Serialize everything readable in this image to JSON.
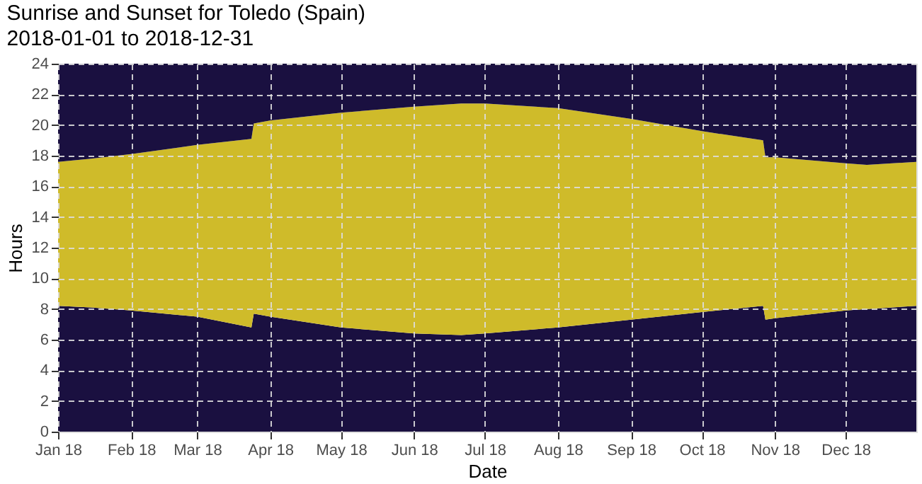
{
  "chart_data": {
    "type": "area",
    "stacked": true,
    "title": "Sunrise and Sunset for Toledo (Spain)",
    "subtitle": "2018-01-01 to 2018-12-31",
    "xlabel": "Date",
    "ylabel": "Hours",
    "x": [
      "2018-01-01",
      "2018-01-15",
      "2018-02-01",
      "2018-03-01",
      "2018-03-24",
      "2018-03-25",
      "2018-04-01",
      "2018-05-01",
      "2018-06-01",
      "2018-06-21",
      "2018-07-01",
      "2018-08-01",
      "2018-09-01",
      "2018-10-01",
      "2018-10-27",
      "2018-10-28",
      "2018-11-01",
      "2018-12-01",
      "2018-12-10",
      "2018-12-31"
    ],
    "series": [
      {
        "color": "#1a1040",
        "values": [
          8.2,
          8.1,
          7.9,
          7.5,
          6.8,
          7.7,
          7.5,
          6.8,
          6.4,
          6.3,
          6.4,
          6.8,
          7.3,
          7.8,
          8.2,
          7.3,
          7.4,
          7.9,
          8.0,
          8.2
        ]
      },
      {
        "color": "#cfbb2a",
        "values": [
          9.4,
          9.7,
          10.2,
          11.2,
          12.3,
          12.4,
          12.8,
          14.0,
          14.8,
          15.1,
          15.0,
          14.3,
          13.1,
          11.8,
          10.8,
          10.6,
          10.5,
          9.6,
          9.4,
          9.4
        ]
      },
      {
        "color": "#1a1040",
        "values": [
          6.4,
          6.2,
          5.9,
          5.3,
          4.9,
          3.9,
          3.7,
          3.2,
          2.8,
          2.6,
          2.6,
          2.9,
          3.6,
          4.4,
          5.0,
          6.1,
          6.1,
          6.5,
          6.6,
          6.4
        ]
      }
    ],
    "xlim": [
      "2018-01-01",
      "2018-12-31"
    ],
    "xticks": [
      {
        "value": "2018-01-01",
        "label": "Jan 18"
      },
      {
        "value": "2018-02-01",
        "label": "Feb 18"
      },
      {
        "value": "2018-03-01",
        "label": "Mar 18"
      },
      {
        "value": "2018-04-01",
        "label": "Apr 18"
      },
      {
        "value": "2018-05-01",
        "label": "May 18"
      },
      {
        "value": "2018-06-01",
        "label": "Jun 18"
      },
      {
        "value": "2018-07-01",
        "label": "Jul 18"
      },
      {
        "value": "2018-08-01",
        "label": "Aug 18"
      },
      {
        "value": "2018-09-01",
        "label": "Sep 18"
      },
      {
        "value": "2018-10-01",
        "label": "Oct 18"
      },
      {
        "value": "2018-11-01",
        "label": "Nov 18"
      },
      {
        "value": "2018-12-01",
        "label": "Dec 18"
      }
    ],
    "ylim": [
      0,
      24
    ],
    "yticks": [
      0,
      2,
      4,
      6,
      8,
      10,
      12,
      14,
      16,
      18,
      20,
      22,
      24
    ],
    "grid": true
  }
}
